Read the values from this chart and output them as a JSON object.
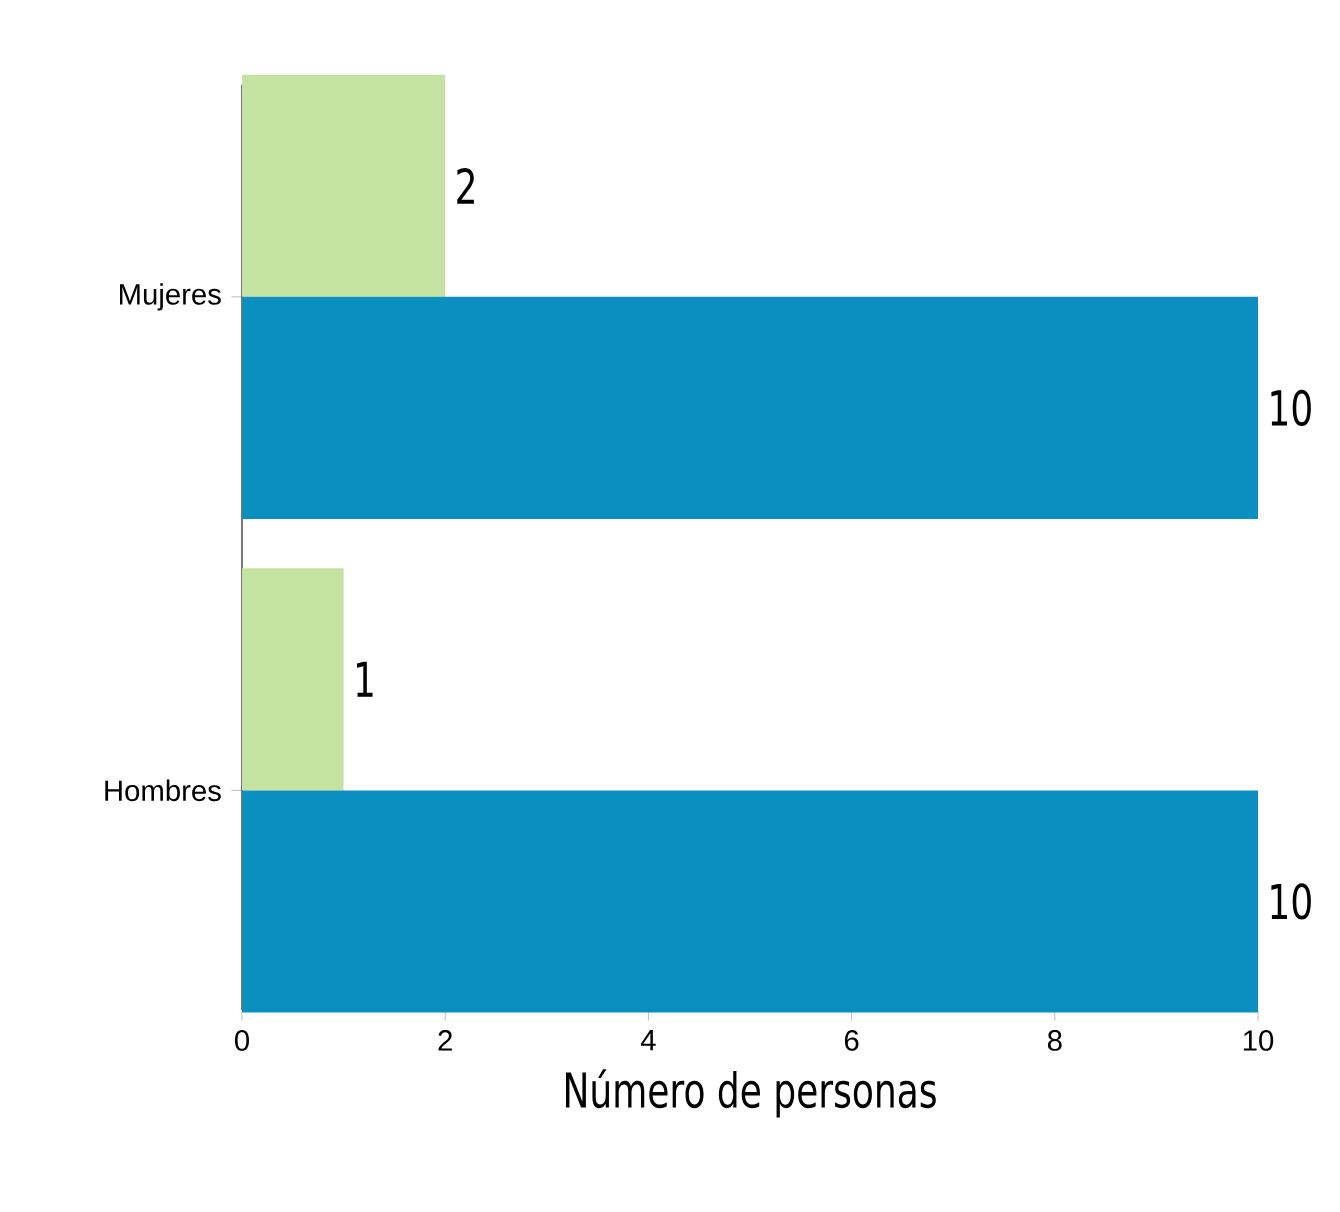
{
  "chart_data": {
    "type": "bar",
    "orientation": "horizontal",
    "categories": [
      "Mujeres",
      "Hombres"
    ],
    "series": [
      {
        "color": "#c5e3a0",
        "values": [
          2,
          1
        ]
      },
      {
        "color": "#0a8fc0",
        "values": [
          10,
          10
        ]
      }
    ],
    "xlabel": "Número de personas",
    "xlim": [
      0,
      10
    ],
    "xticks": [
      0,
      2,
      4,
      6,
      8,
      10
    ],
    "data_labels": true,
    "grid": false
  }
}
